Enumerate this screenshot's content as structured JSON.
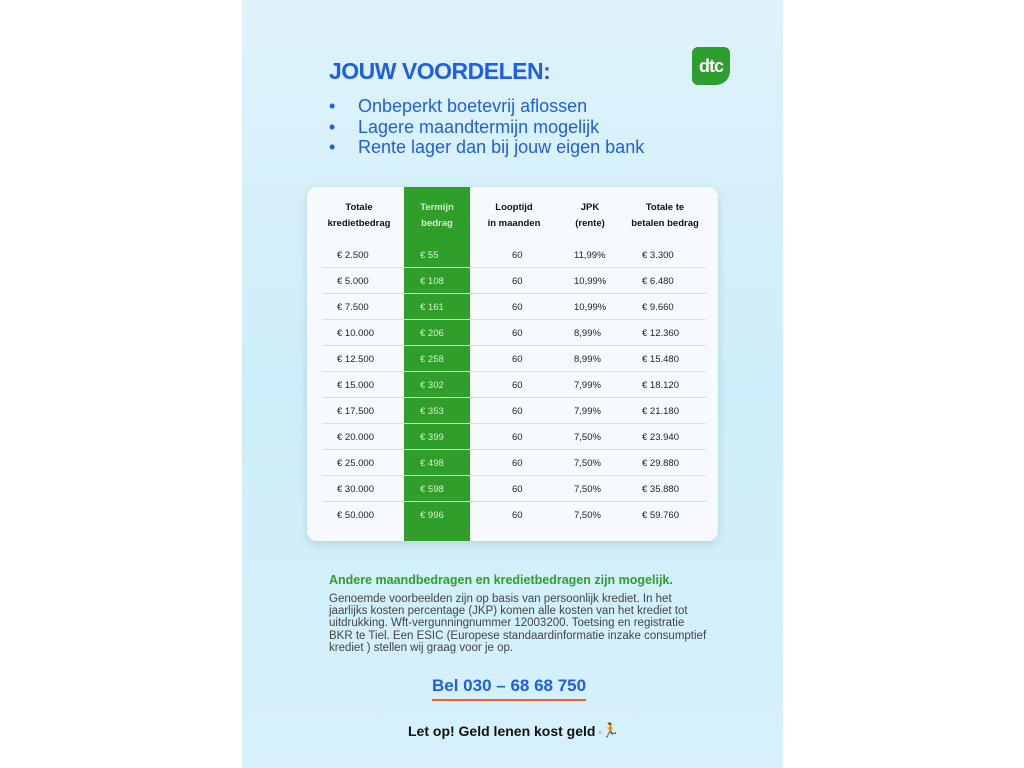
{
  "title": "JOUW VOORDELEN:",
  "logo": "dtc",
  "bullets": [
    "Onbeperkt boetevrij aflossen",
    "Lagere maandtermijn mogelijk",
    "Rente lager dan bij jouw eigen bank"
  ],
  "table": {
    "headers": [
      [
        "Totale",
        "kredietbedrag"
      ],
      [
        "Termijn",
        "bedrag"
      ],
      [
        "Looptijd",
        "in maanden"
      ],
      [
        "JPK",
        "(rente)"
      ],
      [
        "Totale te",
        "betalen bedrag"
      ]
    ],
    "rows": [
      [
        "€ 2.500",
        "€ 55",
        "60",
        "11,99%",
        "€ 3.300"
      ],
      [
        "€ 5.000",
        "€ 108",
        "60",
        "10,99%",
        "€ 6.480"
      ],
      [
        "€ 7.500",
        "€ 161",
        "60",
        "10,99%",
        "€ 9.660"
      ],
      [
        "€ 10.000",
        "€ 206",
        "60",
        "8,99%",
        "€ 12.360"
      ],
      [
        "€ 12.500",
        "€ 258",
        "60",
        "8,99%",
        "€ 15.480"
      ],
      [
        "€ 15.000",
        "€ 302",
        "60",
        "7,99%",
        "€ 18.120"
      ],
      [
        "€ 17.500",
        "€ 353",
        "60",
        "7,99%",
        "€ 21.180"
      ],
      [
        "€ 20.000",
        "€ 399",
        "60",
        "7,50%",
        "€ 23.940"
      ],
      [
        "€ 25.000",
        "€ 498",
        "60",
        "7,50%",
        "€ 29.880"
      ],
      [
        "€ 30.000",
        "€ 598",
        "60",
        "7,50%",
        "€ 35.880"
      ],
      [
        "€ 50.000",
        "€ 996",
        "60",
        "7,50%",
        "€ 59.760"
      ]
    ]
  },
  "green_note": "Andere maandbedragen en kredietbedragen zijn mogelijk.",
  "disclaimer": "Genoemde voorbeelden zijn op basis van persoonlijk krediet. In het jaarlijks kosten percentage (JKP) komen alle kosten van het krediet tot uitdrukking. Wft-vergunningnummer 12003200. Toetsing en registratie BKR te Tiel. Een ESIC (Europese standaardinformatie inzake consumptief krediet ) stellen wij graag voor je op.",
  "phone": "Bel 030 – 68 68 750",
  "warning": "Let op! Geld lenen kost geld",
  "colors": {
    "blue": "#1f5ee6",
    "green": "#2f9e2b"
  }
}
